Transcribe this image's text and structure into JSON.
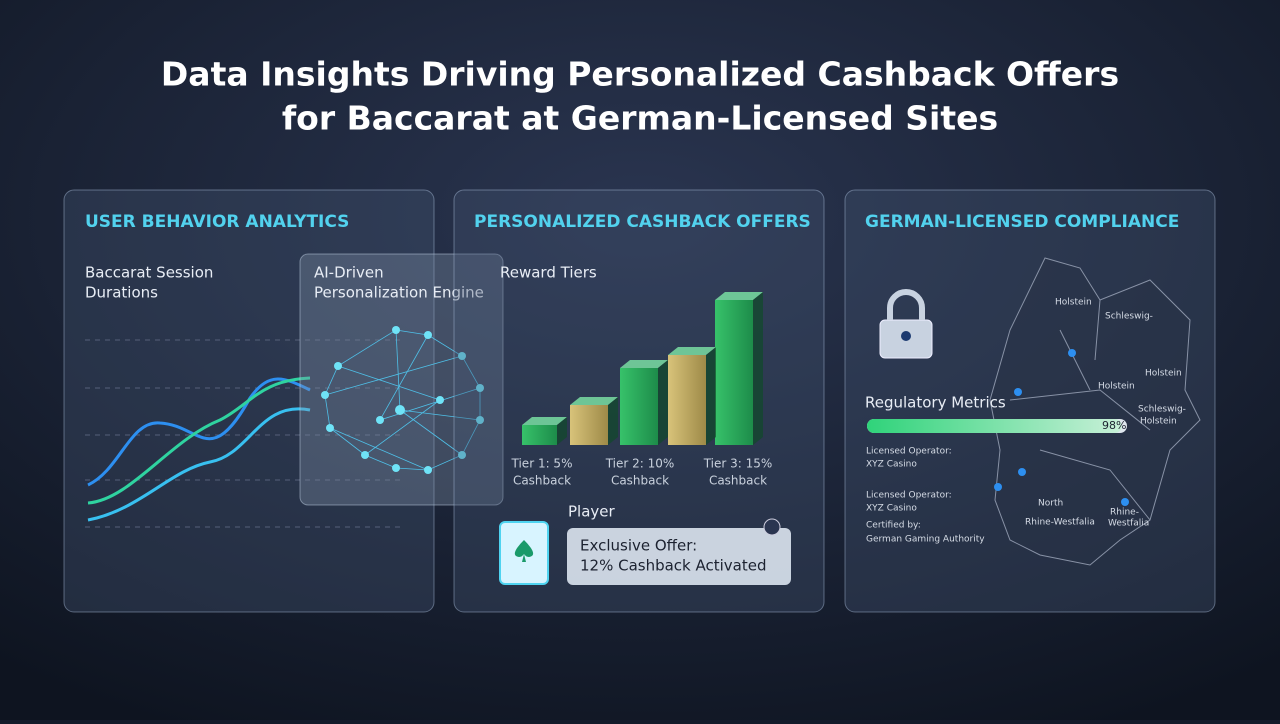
{
  "title": [
    "Data Insights Driving Personalized Cashback Offers",
    "for Baccarat at German-Licensed Sites"
  ],
  "panels": [
    {
      "heading": "USER BEHAVIOR ANALYTICS",
      "subtitle": [
        "Baccarat Session",
        "Durations"
      ],
      "overlay": [
        "AI-Driven",
        "Personalization Engine"
      ]
    },
    {
      "heading": "PERSONALIZED CASHBACK OFFERS",
      "subtitle": "Reward Tiers",
      "tiers": [
        [
          "Tier 1: 5%",
          "Cashback"
        ],
        [
          "Tier 2: 10%",
          "Cashback"
        ],
        [
          "Tier 3: 15%",
          "Cashback"
        ]
      ],
      "player": "Player",
      "offer": [
        "Exclusive Offer:",
        "12% Cashback Activated"
      ]
    },
    {
      "heading": "GERMAN-LICENSED COMPLIANCE",
      "metrics_label": "Regulatory Metrics",
      "progress": {
        "value": 98,
        "label": "98%"
      },
      "details": [
        "Licensed Operator:",
        "XYZ Casino",
        "Licensed Operator:",
        "XYZ Casino",
        "Certified by:",
        "German Gaming Authority"
      ],
      "map_labels": [
        "Holstein",
        "Schleswig-",
        "Holstein",
        "Holstein",
        "Schleswig-",
        "Holstein",
        "North",
        "Rhine-Westfalia",
        "Rhine-",
        "Westfalia"
      ]
    }
  ]
}
